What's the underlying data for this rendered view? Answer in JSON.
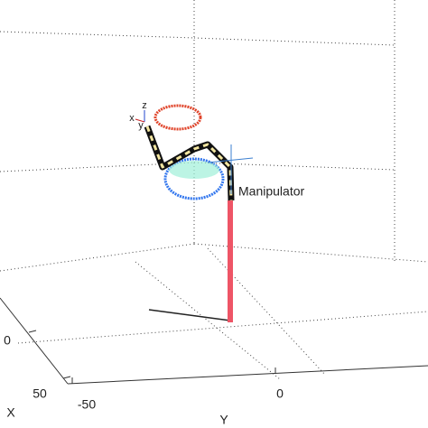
{
  "axes": {
    "x_label": "X",
    "y_label": "Y",
    "x_ticks": [
      "0",
      "50"
    ],
    "y_ticks": [
      "-50",
      "0"
    ]
  },
  "robot": {
    "name": "Manipulator",
    "frame_labels": [
      "z",
      "x",
      "y"
    ]
  }
}
